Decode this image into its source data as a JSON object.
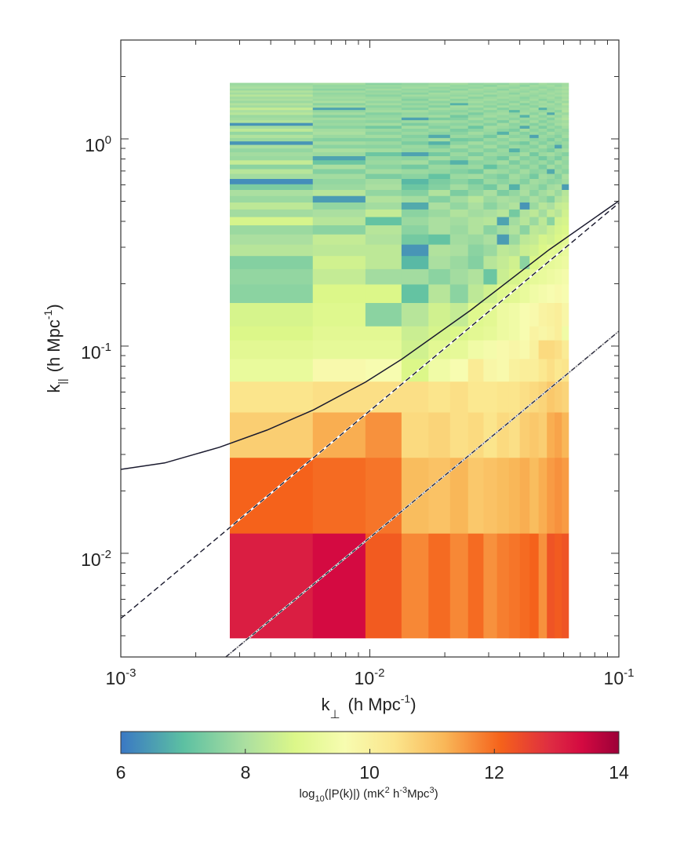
{
  "chart_data": {
    "type": "heatmap",
    "xscale": "log",
    "yscale": "log",
    "xlim": [
      0.001,
      0.1
    ],
    "ylim": [
      0.00316,
      3.0
    ],
    "grid": false,
    "xlabel": {
      "main": "k",
      "sub": "⊥",
      "unit": "(h Mpc",
      "unit_sup": "-1",
      "close": ")"
    },
    "ylabel": {
      "main": "k",
      "sub": "||",
      "unit": "(h Mpc",
      "unit_sup": "-1",
      "close": ")"
    },
    "xticks": [
      {
        "base": "10",
        "exp": "-3",
        "value": 0.001
      },
      {
        "base": "10",
        "exp": "-2",
        "value": 0.01
      },
      {
        "base": "10",
        "exp": "-1",
        "value": 0.1
      }
    ],
    "yticks": [
      {
        "base": "10",
        "exp": "-2",
        "value": 0.01
      },
      {
        "base": "10",
        "exp": "-1",
        "value": 0.1
      },
      {
        "base": "10",
        "exp": "0",
        "value": 1
      }
    ],
    "colorbar": {
      "range": [
        6,
        14
      ],
      "ticks": [
        "6",
        "8",
        "10",
        "12",
        "14"
      ],
      "label": {
        "a": "log",
        "a_sub": "10",
        "b": "(|P(k)|)  (mK",
        "b_sup": "2",
        "c": " h",
        "c_sup": "-3",
        "d": "Mpc",
        "d_sup": "3",
        "e": ")"
      },
      "placement": "bottom",
      "colormap": [
        [
          6,
          "#3a78c4"
        ],
        [
          7,
          "#5cc0a2"
        ],
        [
          8,
          "#abdfa0"
        ],
        [
          8.8,
          "#dcf789"
        ],
        [
          9.6,
          "#f7fcb0"
        ],
        [
          10.4,
          "#fbe58c"
        ],
        [
          11.2,
          "#f9b758"
        ],
        [
          12.1,
          "#f5621b"
        ],
        [
          12.9,
          "#de2c42"
        ],
        [
          13.4,
          "#d40a41"
        ],
        [
          14,
          "#9c0038"
        ]
      ]
    },
    "kperp_edges": [
      0.00274,
      0.0059,
      0.0096,
      0.0134,
      0.0172,
      0.021,
      0.0248,
      0.0286,
      0.0324,
      0.0362,
      0.04,
      0.0438,
      0.0476,
      0.0514,
      0.0552,
      0.059,
      0.0628
    ],
    "kpar_edges": [
      0.0039,
      0.0125,
      0.029,
      0.048,
      0.0676,
      0.0869,
      0.107,
      0.125,
      0.162,
      0.199,
      0.236,
      0.273,
      0.31,
      0.347,
      0.384,
      0.421,
      0.458,
      0.495,
      0.532,
      0.569,
      0.606,
      0.643,
      0.68,
      0.717,
      0.754,
      0.791,
      0.828,
      0.865,
      0.902,
      0.939,
      0.976,
      1.013,
      1.05,
      1.087,
      1.124,
      1.161,
      1.198,
      1.235,
      1.272,
      1.309,
      1.346,
      1.383,
      1.42,
      1.457,
      1.494,
      1.531,
      1.568,
      1.605,
      1.642,
      1.679,
      1.716,
      1.753,
      1.79,
      1.827,
      1.864
    ],
    "values": [
      [
        13.1,
        13.4,
        12.2,
        11.7,
        12.0,
        11.7,
        12.0,
        11.6,
        11.8,
        11.9,
        12.0,
        12.1,
        11.6,
        12.3,
        12.2,
        12.3
      ],
      [
        12.1,
        12.0,
        11.9,
        11.1,
        11.0,
        11.2,
        10.9,
        11.0,
        11.1,
        11.2,
        11.3,
        11.1,
        11.3,
        11.5,
        11.6,
        11.5
      ],
      [
        10.8,
        11.3,
        11.6,
        10.6,
        10.7,
        10.5,
        10.6,
        10.4,
        10.6,
        10.5,
        10.8,
        10.9,
        10.8,
        11.3,
        11.4,
        11.2
      ],
      [
        10.4,
        10.5,
        10.5,
        10.5,
        10.4,
        10.5,
        10.3,
        10.3,
        10.4,
        10.4,
        10.5,
        10.6,
        10.7,
        10.9,
        10.8,
        10.7
      ],
      [
        9.2,
        9.7,
        9.6,
        8.8,
        9.4,
        9.6,
        10.2,
        9.8,
        9.7,
        10.0,
        10.1,
        10.1,
        10.3,
        10.5,
        10.3,
        10.4
      ],
      [
        9.0,
        9.1,
        9.1,
        8.6,
        9.0,
        9.1,
        9.4,
        9.5,
        9.7,
        9.8,
        9.7,
        10.0,
        10.6,
        10.6,
        10.5,
        10.2
      ],
      [
        8.8,
        9.0,
        9.0,
        8.5,
        8.7,
        8.8,
        9.0,
        9.1,
        9.3,
        9.4,
        9.6,
        9.9,
        9.8,
        9.9,
        10.1,
        9.4
      ],
      [
        8.7,
        8.9,
        7.6,
        8.2,
        8.6,
        8.4,
        8.9,
        9.0,
        9.3,
        9.4,
        9.6,
        9.7,
        9.9,
        10.0,
        10.1,
        9.8
      ],
      [
        7.6,
        8.8,
        8.8,
        7.1,
        8.2,
        7.6,
        8.3,
        8.6,
        8.9,
        9.0,
        9.2,
        9.4,
        9.5,
        9.6,
        9.7,
        9.6
      ],
      [
        7.7,
        8.4,
        7.9,
        7.9,
        7.6,
        7.9,
        8.1,
        7.2,
        8.5,
        8.7,
        8.9,
        9.1,
        9.2,
        9.3,
        9.4,
        9.5
      ],
      [
        7.5,
        8.6,
        8.3,
        6.9,
        8.0,
        7.8,
        7.5,
        8.2,
        8.4,
        8.6,
        7.6,
        8.8,
        9.0,
        9.1,
        9.2,
        9.3
      ],
      [
        8.2,
        8.3,
        8.3,
        6.4,
        8.1,
        8.0,
        7.6,
        7.8,
        8.3,
        8.2,
        8.5,
        8.6,
        8.8,
        9.0,
        8.9,
        9.2
      ],
      [
        8.0,
        8.4,
        8.1,
        7.3,
        7.1,
        7.9,
        7.8,
        8.0,
        6.5,
        7.8,
        8.3,
        8.4,
        8.7,
        8.6,
        8.8,
        9.0
      ],
      [
        7.8,
        7.6,
        8.2,
        7.6,
        8.0,
        7.8,
        8.1,
        7.6,
        7.9,
        8.1,
        7.6,
        8.3,
        8.2,
        8.5,
        8.7,
        8.8
      ],
      [
        8.7,
        8.2,
        7.1,
        7.8,
        8.0,
        7.9,
        8.1,
        8.2,
        6.6,
        7.9,
        8.2,
        7.8,
        8.3,
        7.6,
        8.6,
        8.7
      ],
      [
        7.9,
        8.0,
        8.4,
        7.6,
        7.8,
        8.1,
        7.9,
        8.0,
        8.2,
        7.3,
        8.1,
        8.3,
        7.9,
        8.4,
        8.2,
        8.6
      ],
      [
        8.3,
        7.7,
        7.9,
        6.7,
        8.0,
        7.7,
        8.0,
        7.6,
        7.9,
        8.1,
        6.4,
        7.8,
        8.2,
        8.0,
        8.4,
        8.5
      ],
      [
        7.8,
        6.5,
        8.1,
        7.9,
        7.5,
        7.9,
        8.2,
        7.8,
        8.0,
        7.9,
        7.7,
        8.0,
        7.8,
        7.5,
        8.1,
        8.3
      ],
      [
        8.0,
        8.2,
        7.7,
        7.5,
        8.1,
        7.4,
        7.7,
        8.0,
        7.4,
        7.7,
        8.0,
        7.6,
        7.9,
        8.1,
        7.8,
        8.2
      ],
      [
        7.4,
        7.8,
        8.0,
        7.2,
        7.5,
        7.9,
        7.6,
        7.3,
        7.9,
        6.8,
        7.9,
        7.8,
        7.5,
        7.9,
        8.0,
        6.5
      ],
      [
        6.3,
        7.7,
        7.9,
        6.9,
        7.4,
        7.6,
        7.3,
        7.8,
        7.6,
        7.8,
        7.5,
        7.9,
        7.8,
        7.6,
        7.7,
        7.9
      ],
      [
        7.9,
        7.9,
        7.4,
        7.6,
        7.1,
        7.8,
        7.9,
        7.6,
        7.4,
        7.9,
        7.7,
        7.3,
        7.9,
        7.8,
        7.5,
        8.0
      ],
      [
        8.2,
        7.5,
        7.9,
        7.8,
        7.7,
        7.5,
        7.3,
        7.9,
        7.8,
        7.6,
        7.9,
        7.6,
        7.7,
        6.7,
        7.8,
        7.6
      ],
      [
        7.6,
        8.0,
        7.6,
        7.3,
        7.8,
        7.7,
        7.8,
        7.1,
        7.6,
        7.8,
        7.5,
        7.8,
        7.4,
        7.9,
        7.6,
        7.8
      ],
      [
        8.4,
        7.2,
        7.8,
        7.9,
        7.4,
        6.8,
        7.6,
        7.7,
        7.9,
        7.4,
        7.8,
        7.6,
        7.8,
        7.5,
        7.9,
        7.7
      ],
      [
        7.8,
        6.6,
        7.7,
        7.6,
        7.9,
        7.6,
        7.9,
        7.6,
        7.3,
        7.9,
        7.5,
        7.7,
        7.3,
        7.7,
        7.4,
        7.8
      ],
      [
        7.9,
        7.8,
        7.2,
        6.6,
        7.3,
        7.8,
        7.4,
        7.8,
        7.7,
        7.6,
        7.9,
        7.3,
        7.8,
        7.9,
        7.7,
        7.5
      ],
      [
        7.7,
        8.0,
        7.9,
        7.7,
        7.8,
        7.5,
        7.8,
        7.5,
        7.8,
        6.8,
        7.6,
        7.8,
        7.6,
        7.4,
        7.8,
        7.9
      ],
      [
        8.0,
        7.6,
        7.6,
        7.8,
        7.5,
        7.9,
        7.6,
        7.9,
        7.5,
        7.8,
        7.7,
        7.5,
        7.9,
        7.6,
        6.6,
        7.7
      ],
      [
        6.4,
        7.9,
        7.8,
        7.4,
        6.8,
        7.6,
        7.9,
        7.6,
        7.8,
        7.5,
        7.3,
        7.8,
        7.5,
        7.8,
        7.6,
        7.8
      ],
      [
        7.8,
        7.5,
        7.5,
        7.7,
        7.9,
        7.3,
        7.4,
        7.8,
        7.6,
        7.9,
        7.8,
        7.6,
        7.7,
        7.4,
        7.8,
        7.6
      ],
      [
        8.1,
        7.8,
        7.9,
        7.5,
        6.7,
        7.8,
        7.7,
        7.3,
        7.9,
        7.6,
        7.7,
        6.6,
        7.8,
        7.7,
        7.5,
        7.9
      ],
      [
        7.7,
        8.0,
        7.6,
        7.8,
        7.6,
        7.6,
        7.9,
        7.7,
        6.8,
        7.8,
        7.5,
        7.8,
        7.6,
        7.9,
        7.7,
        7.8
      ],
      [
        8.3,
        7.9,
        7.8,
        7.6,
        7.8,
        7.4,
        7.6,
        7.8,
        7.6,
        7.4,
        7.9,
        7.6,
        7.8,
        7.5,
        7.8,
        7.7
      ],
      [
        7.9,
        7.6,
        7.3,
        7.9,
        7.5,
        7.8,
        7.2,
        7.9,
        7.8,
        7.7,
        6.7,
        7.8,
        7.4,
        7.8,
        7.6,
        7.9
      ],
      [
        6.4,
        7.8,
        7.9,
        7.4,
        7.7,
        7.6,
        7.8,
        7.5,
        7.9,
        7.6,
        7.8,
        7.5,
        7.8,
        7.6,
        7.9,
        8.0
      ],
      [
        8.1,
        7.7,
        7.6,
        7.8,
        7.9,
        7.8,
        7.6,
        7.8,
        7.4,
        7.9,
        7.6,
        7.9,
        7.5,
        7.8,
        7.8,
        7.9
      ],
      [
        7.9,
        7.9,
        7.8,
        6.6,
        7.4,
        7.5,
        7.9,
        7.6,
        7.8,
        7.6,
        7.8,
        7.7,
        7.8,
        7.5,
        7.9,
        8.1
      ],
      [
        7.8,
        7.5,
        7.7,
        7.8,
        7.9,
        7.3,
        7.7,
        7.9,
        7.7,
        7.8,
        6.8,
        7.9,
        7.6,
        7.9,
        7.7,
        8.0
      ],
      [
        8.2,
        7.9,
        7.5,
        7.7,
        7.6,
        7.8,
        7.4,
        7.8,
        7.9,
        7.7,
        7.9,
        7.6,
        7.9,
        6.7,
        7.9,
        7.8
      ],
      [
        8.0,
        7.7,
        7.9,
        7.9,
        7.7,
        7.6,
        7.8,
        7.6,
        7.8,
        6.9,
        7.8,
        7.8,
        7.7,
        7.8,
        7.6,
        8.1
      ],
      [
        8.4,
        6.6,
        7.8,
        7.5,
        7.9,
        7.8,
        7.6,
        7.9,
        7.5,
        7.8,
        7.7,
        7.9,
        6.8,
        7.7,
        7.9,
        8.0
      ],
      [
        7.9,
        7.9,
        7.6,
        7.8,
        7.5,
        7.9,
        7.9,
        7.6,
        7.9,
        7.7,
        7.8,
        7.6,
        7.9,
        7.8,
        7.8,
        7.9
      ],
      [
        8.1,
        7.6,
        7.9,
        7.6,
        7.8,
        6.8,
        7.7,
        7.8,
        7.6,
        7.9,
        7.5,
        7.8,
        7.8,
        7.9,
        7.7,
        8.1
      ],
      [
        7.8,
        8.0,
        7.7,
        7.8,
        7.6,
        7.8,
        7.9,
        7.7,
        7.8,
        7.6,
        7.9,
        7.7,
        7.9,
        7.6,
        7.9,
        7.8
      ],
      [
        8.0,
        7.8,
        7.9,
        7.5,
        7.9,
        7.6,
        7.8,
        7.9,
        7.7,
        7.8,
        7.7,
        7.9,
        7.6,
        7.8,
        7.8,
        8.0
      ],
      [
        7.9,
        7.9,
        7.8,
        7.7,
        7.7,
        7.9,
        7.6,
        7.8,
        7.9,
        7.8,
        7.6,
        7.8,
        7.8,
        7.9,
        7.7,
        7.9
      ],
      [
        8.2,
        7.8,
        7.6,
        7.9,
        7.8,
        7.7,
        7.9,
        7.6,
        7.8,
        7.9,
        7.8,
        7.7,
        7.9,
        7.8,
        7.9,
        8.0
      ],
      [
        7.9,
        7.7,
        7.8,
        7.6,
        7.9,
        7.8,
        7.7,
        7.9,
        7.8,
        7.6,
        7.9,
        7.8,
        7.7,
        7.9,
        7.8,
        7.9
      ],
      [
        8.1,
        7.9,
        7.7,
        7.8,
        7.6,
        7.9,
        7.8,
        7.7,
        7.9,
        7.8,
        7.7,
        7.9,
        7.8,
        7.8,
        7.9,
        8.0
      ],
      [
        7.8,
        7.6,
        7.9,
        7.7,
        7.8,
        7.6,
        7.9,
        7.8,
        7.6,
        7.9,
        7.8,
        7.7,
        7.9,
        7.7,
        7.8,
        7.9
      ],
      [
        8.0,
        7.8,
        7.7,
        7.9,
        7.7,
        7.8,
        7.7,
        7.9,
        7.8,
        7.7,
        7.9,
        7.8,
        7.7,
        7.8,
        7.9,
        8.0
      ],
      [
        7.9,
        7.7,
        7.8,
        7.8,
        7.9,
        7.7,
        7.8,
        7.6,
        7.9,
        7.8,
        7.6,
        7.9,
        7.8,
        7.9,
        7.7,
        7.9
      ],
      [
        7.8,
        7.9,
        7.6,
        7.7,
        7.8,
        7.9,
        7.7,
        7.8,
        7.7,
        7.9,
        7.8,
        7.7,
        7.9,
        7.8,
        7.8,
        7.9
      ]
    ],
    "lines": [
      {
        "style": "solid",
        "color": "#1a1a2e",
        "x": [
          0.001,
          0.0015,
          0.00249,
          0.00386,
          0.00595,
          0.0096,
          0.0134,
          0.0254,
          0.0525,
          0.1
        ],
        "y": [
          0.0254,
          0.0273,
          0.0325,
          0.0393,
          0.0493,
          0.067,
          0.0863,
          0.149,
          0.292,
          0.502
        ]
      },
      {
        "style": "dashed",
        "color": "#1a1a2e",
        "x": [
          0.001,
          0.1
        ],
        "y": [
          0.00485,
          0.49
        ]
      },
      {
        "style": "dash-dot",
        "color": "#1a1a2e",
        "x": [
          0.00264,
          0.1
        ],
        "y": [
          0.00316,
          0.118
        ]
      }
    ]
  }
}
